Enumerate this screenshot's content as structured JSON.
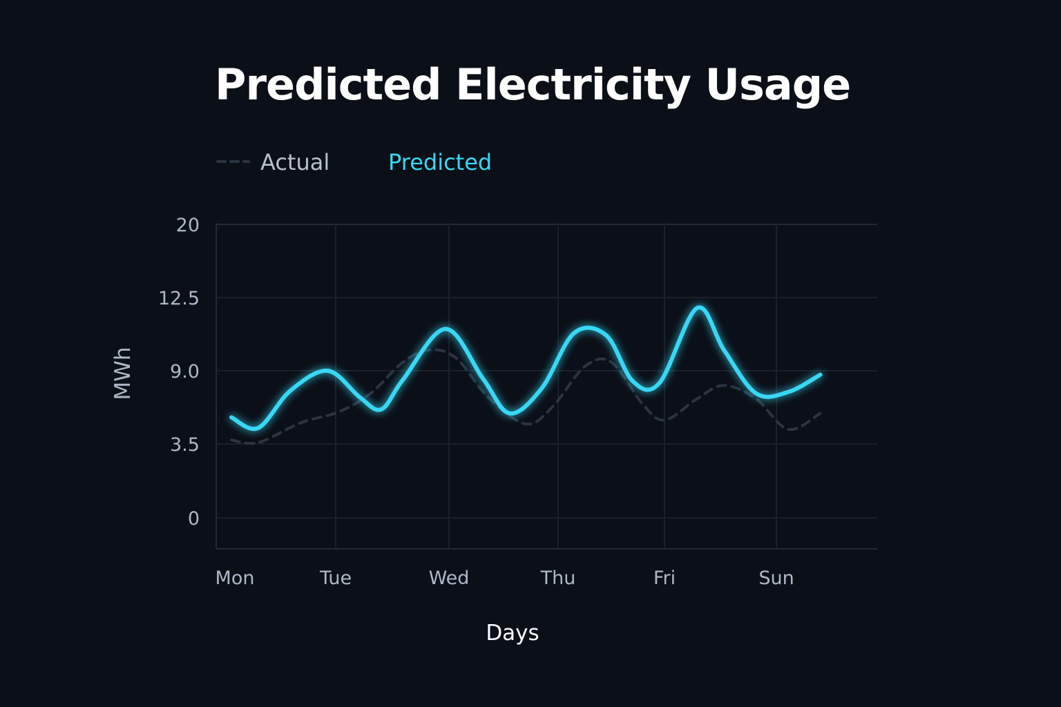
{
  "chart_data": {
    "type": "line",
    "title": "Predicted Electricity Usage",
    "xlabel": "Days",
    "ylabel": "MWh",
    "categories": [
      "Mon",
      "Tue",
      "Wed",
      "Thu",
      "Fri",
      "Sun"
    ],
    "yticks": [
      0,
      3.5,
      9.0,
      12.5,
      20
    ],
    "ytick_labels": [
      "0",
      "3.5",
      "9.0",
      "12.5",
      "20"
    ],
    "xlim": [
      0,
      5.9
    ],
    "grid": true,
    "legend": "top-left",
    "series": [
      {
        "name": "Actual",
        "style": "dashed",
        "color": "#2b3442",
        "x": [
          0,
          0.25,
          0.65,
          1.0,
          1.3,
          1.6,
          1.85,
          2.1,
          2.4,
          2.75,
          3.0,
          3.3,
          3.55,
          3.85,
          4.05,
          4.35,
          4.6,
          4.9,
          5.2,
          5.5
        ],
        "y": [
          3.8,
          3.6,
          5.1,
          5.9,
          7.3,
          9.4,
          10.0,
          9.6,
          7.0,
          5.0,
          6.3,
          9.2,
          9.4,
          6.4,
          5.3,
          6.9,
          7.9,
          6.9,
          4.6,
          5.8
        ]
      },
      {
        "name": "Predicted",
        "style": "solid",
        "color": "#38d7f5",
        "x": [
          0,
          0.25,
          0.55,
          0.9,
          1.2,
          1.4,
          1.6,
          2.0,
          2.35,
          2.6,
          2.9,
          3.2,
          3.5,
          3.75,
          4.0,
          4.35,
          4.6,
          4.9,
          5.2,
          5.5
        ],
        "y": [
          5.5,
          4.7,
          7.5,
          9.0,
          7.0,
          6.1,
          8.3,
          11.0,
          8.4,
          5.8,
          7.7,
          10.8,
          10.7,
          8.2,
          8.1,
          12.0,
          10.0,
          7.3,
          7.4,
          8.7
        ]
      }
    ]
  }
}
